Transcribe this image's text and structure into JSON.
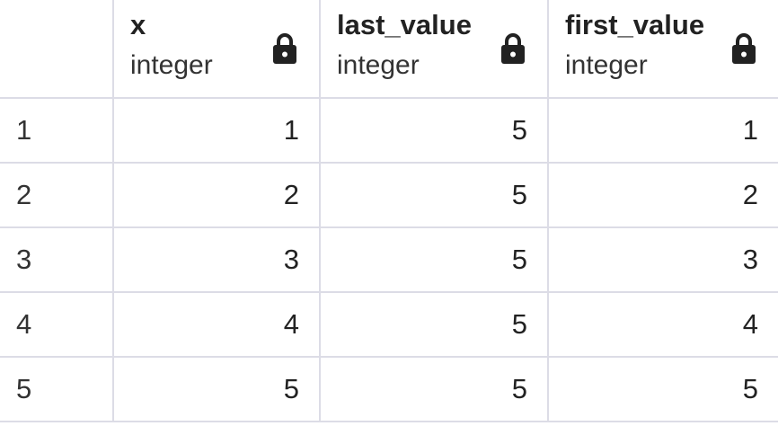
{
  "columns": [
    {
      "name": "x",
      "type": "integer"
    },
    {
      "name": "last_value",
      "type": "integer"
    },
    {
      "name": "first_value",
      "type": "integer"
    }
  ],
  "rows": [
    {
      "n": "1",
      "x": "1",
      "last_value": "5",
      "first_value": "1"
    },
    {
      "n": "2",
      "x": "2",
      "last_value": "5",
      "first_value": "2"
    },
    {
      "n": "3",
      "x": "3",
      "last_value": "5",
      "first_value": "3"
    },
    {
      "n": "4",
      "x": "4",
      "last_value": "5",
      "first_value": "4"
    },
    {
      "n": "5",
      "x": "5",
      "last_value": "5",
      "first_value": "5"
    }
  ],
  "icons": {
    "column_lock": "lock-icon"
  },
  "colors": {
    "grid_line": "#dcdce6",
    "text": "#222222",
    "background": "#ffffff"
  }
}
